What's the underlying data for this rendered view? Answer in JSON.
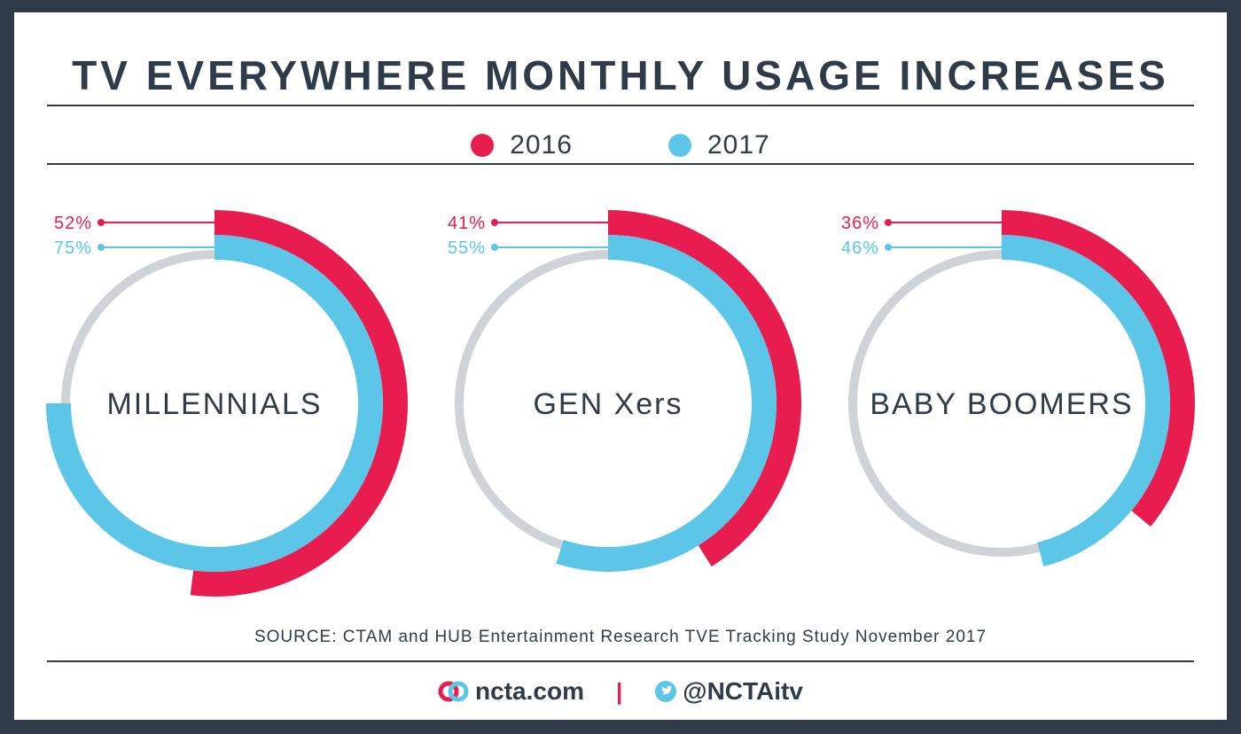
{
  "title": "TV EVERYWHERE MONTHLY USAGE INCREASES",
  "legend": [
    {
      "label": "2016",
      "color": "#e81c4f"
    },
    {
      "label": "2017",
      "color": "#5bc6e8"
    }
  ],
  "colors": {
    "track": "#cfd2d6",
    "text": "#2f3b48",
    "background": "#2f3b48"
  },
  "chart_data": {
    "type": "radial-bar",
    "categories": [
      "MILLENNIALS",
      "GEN Xers",
      "BABY BOOMERS"
    ],
    "series": [
      {
        "name": "2016",
        "values": [
          52,
          41,
          36
        ],
        "labels": [
          "52%",
          "41%",
          "36%"
        ]
      },
      {
        "name": "2017",
        "values": [
          75,
          55,
          46
        ],
        "labels": [
          "75%",
          "55%",
          "46%"
        ]
      }
    ],
    "max": 100,
    "legend_position": "top-center"
  },
  "source": "SOURCE: CTAM and HUB Entertainment Research TVE Tracking Study November 2017",
  "footer": {
    "site": "ncta.com",
    "separator": "|",
    "twitter": "@NCTAitv",
    "site_icon": "ncta-logo-icon",
    "twitter_icon": "twitter-bird-icon"
  }
}
